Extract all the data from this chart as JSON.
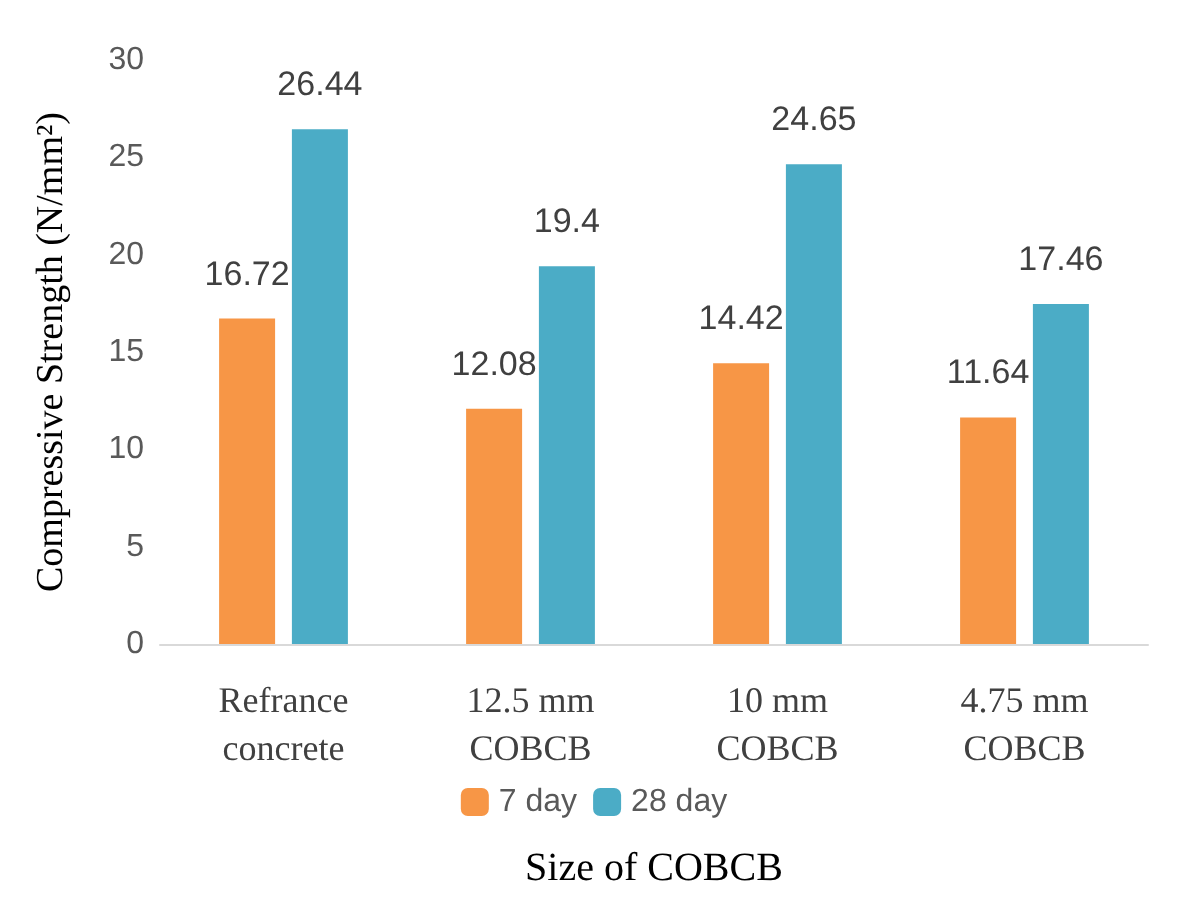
{
  "chart_data": {
    "type": "bar",
    "xlabel": "Size of COBCB",
    "ylabel": "Compressive Strength (N/mm²)",
    "categories": [
      "Refrance\nconcrete",
      "12.5 mm\nCOBCB",
      "10 mm\nCOBCB",
      "4.75 mm\nCOBCB"
    ],
    "series": [
      {
        "name": "7 day",
        "color": "#f79646",
        "values": [
          16.72,
          12.08,
          14.42,
          11.64
        ]
      },
      {
        "name": "28 day",
        "color": "#4bacc6",
        "values": [
          26.44,
          19.4,
          24.65,
          17.46
        ]
      }
    ],
    "ylim": [
      0,
      30
    ],
    "yticks": [
      0,
      5,
      10,
      15,
      20,
      25,
      30
    ],
    "grid": false,
    "legend": "bottom",
    "data_labels": true
  }
}
